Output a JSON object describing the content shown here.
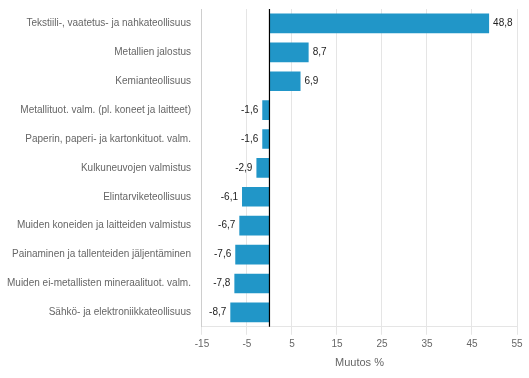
{
  "chart_data": {
    "type": "bar",
    "orientation": "horizontal",
    "categories": [
      "Tekstiili-, vaatetus- ja nahkateollisuus",
      "Metallien jalostus",
      "Kemianteollisuus",
      "Metallituot. valm. (pl. koneet ja laitteet)",
      "Paperin, paperi- ja kartonkituot. valm.",
      "Kulkuneuvojen valmistus",
      "Elintarviketeollisuus",
      "Muiden koneiden ja laitteiden valmistus",
      "Painaminen ja tallenteiden jäljentäminen",
      "Muiden ei-metallisten mineraalituot. valm.",
      "Sähkö- ja elektroniikkateollisuus"
    ],
    "values": [
      48.8,
      8.7,
      6.9,
      -1.6,
      -1.6,
      -2.9,
      -6.1,
      -6.7,
      -7.6,
      -7.8,
      -8.7
    ],
    "value_labels": [
      "48,8",
      "8,7",
      "6,9",
      "-1,6",
      "-1,6",
      "-2,9",
      "-6,1",
      "-6,7",
      "-7,6",
      "-7,8",
      "-8,7"
    ],
    "data_labels": true,
    "color": "#2196c8",
    "xlabel": "Muutos %",
    "xlim": [
      -15,
      55
    ],
    "xticks": [
      -15,
      -5,
      5,
      15,
      25,
      35,
      45,
      55
    ],
    "grid": true
  }
}
